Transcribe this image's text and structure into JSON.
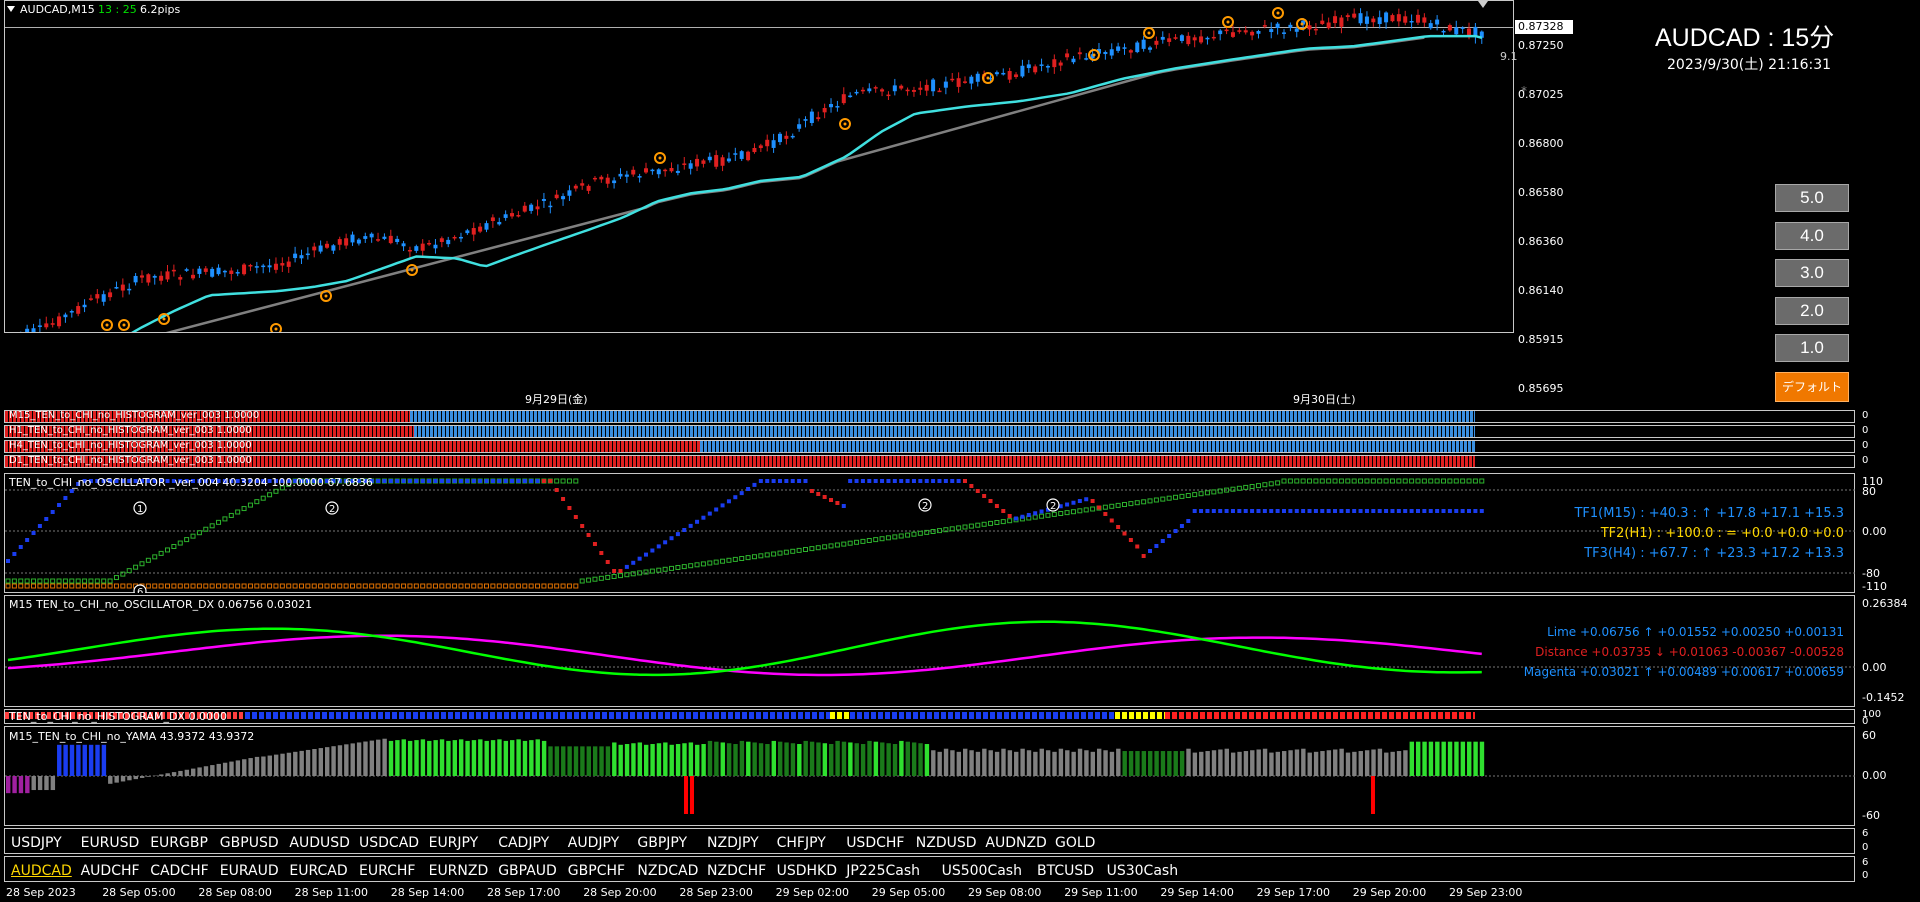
{
  "header": {
    "symbol_tf": "AUDCAD,M15",
    "timer": "13 : 25",
    "spread": "6.2pips"
  },
  "overlay": {
    "title": "AUDCAD : 15分",
    "datetime": "2023/9/30(土) 21:16:31",
    "side_value": "9.1"
  },
  "price_axis": {
    "current": "0.87328",
    "labels": [
      "0.87250",
      "0.87025",
      "0.86800",
      "0.86580",
      "0.86360",
      "0.86140",
      "0.85915",
      "0.85695"
    ]
  },
  "date_markers": [
    "9月29日(金)",
    "9月30日(土)"
  ],
  "level_buttons": [
    "5.0",
    "4.0",
    "3.0",
    "2.0",
    "1.0"
  ],
  "default_button": "デフォルト",
  "histograms": [
    {
      "label": "M15_TEN_to_CHI_no_HISTOGRAM_ver_003 1.0000",
      "value": "0"
    },
    {
      "label": "H1_TEN_to_CHI_no_HISTOGRAM_ver_003 1.0000",
      "value": "0"
    },
    {
      "label": "H4_TEN_to_CHI_no_HISTOGRAM_ver_003 1.0000",
      "value": "0"
    },
    {
      "label": "D1_TEN_to_CHI_no_HISTOGRAM_ver_003 1.0000",
      "value": "0"
    }
  ],
  "oscillator": {
    "label": "TEN_to_CHI_no_OSCILLATOR _ver_004 40.3204 100.0000 67.6836",
    "axis": [
      "110",
      "80",
      "0.00",
      "-80",
      "-110"
    ],
    "tf_lines": [
      {
        "text": "TF1(M15) : +40.3 : ↑ +17.8 +17.1 +15.3",
        "color": "#1e90ff"
      },
      {
        "text": "TF2(H1) : +100.0 : = +0.0 +0.0 +0.0",
        "color": "#ffd700"
      },
      {
        "text": "TF3(H4) : +67.7 : ↑ +23.3 +17.2 +13.3",
        "color": "#1e90ff"
      }
    ]
  },
  "dx": {
    "label": "M15 TEN_to_CHI_no_OSCILLATOR_DX  0.06756 0.03021",
    "axis": [
      "0.26384",
      "0.00",
      "-0.1452"
    ],
    "lines": [
      {
        "text": "Lime +0.06756 ↑ +0.01552 +0.00250 +0.00131",
        "color": "#1e90ff"
      },
      {
        "text": "Distance +0.03735 ↓ +0.01063 -0.00367 -0.00528",
        "color": "#e02020"
      },
      {
        "text": "Magenta +0.03021 ↑ +0.00489 +0.00617 +0.00659",
        "color": "#1e90ff"
      }
    ]
  },
  "hist_dx": {
    "label": "TEN_to_CHI_no_HISTOGRAM_DX 0.0000",
    "axis": [
      "100",
      "0"
    ]
  },
  "yama": {
    "label": "M15_TEN_to_CHI_no_YAMA  43.9372 43.9372",
    "axis": [
      "60",
      "0.00",
      "-60"
    ]
  },
  "symbols_row1": [
    "USDJPY",
    "EURUSD",
    "EURGBP",
    "GBPUSD",
    "AUDUSD",
    "USDCAD",
    "EURJPY",
    "CADJPY",
    "AUDJPY",
    "GBPJPY",
    "NZDJPY",
    "CHFJPY",
    "USDCHF",
    "NZDUSD",
    "AUDNZD",
    "GOLD"
  ],
  "symbols_row2": [
    "AUDCAD",
    "AUDCHF",
    "CADCHF",
    "EURAUD",
    "EURCAD",
    "EURCHF",
    "EURNZD",
    "GBPAUD",
    "GBPCHF",
    "NZDCAD",
    "NZDCHF",
    "USDHKD",
    "JP225Cash",
    "US500Cash",
    "BTCUSD",
    "US30Cash"
  ],
  "symbol_panel_axis": [
    "6",
    "0",
    "6",
    "0"
  ],
  "time_axis": [
    "28 Sep 2023",
    "28 Sep 05:00",
    "28 Sep 08:00",
    "28 Sep 11:00",
    "28 Sep 14:00",
    "28 Sep 17:00",
    "28 Sep 20:00",
    "28 Sep 23:00",
    "29 Sep 02:00",
    "29 Sep 05:00",
    "29 Sep 08:00",
    "29 Sep 11:00",
    "29 Sep 14:00",
    "29 Sep 17:00",
    "29 Sep 20:00",
    "29 Sep 23:00"
  ],
  "colors": {
    "bull": "#1e90ff",
    "bear": "#e02020",
    "ma_fast": "#40e0e0",
    "ma_slow": "#808080",
    "magenta": "#ff00ff",
    "lime": "#00ff00",
    "default_button": "#f07800",
    "selected_symbol": "#ffd700"
  }
}
